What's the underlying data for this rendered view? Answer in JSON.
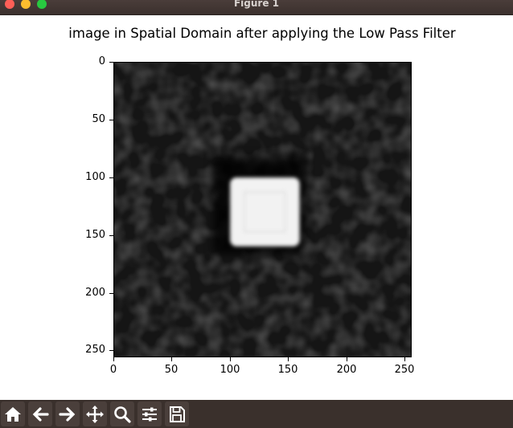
{
  "window": {
    "title": "Figure 1"
  },
  "plot": {
    "title": "image in Spatial Domain after applying the Low Pass Filter",
    "y_ticks": [
      "0",
      "50",
      "100",
      "150",
      "200",
      "250"
    ],
    "x_ticks": [
      "0",
      "50",
      "100",
      "150",
      "200",
      "250"
    ],
    "image_extent": [
      0,
      256
    ],
    "bright_square": {
      "x_from": 100,
      "x_to": 160,
      "y_from": 100,
      "y_to": 160
    },
    "colormap": "gray"
  },
  "toolbar": {
    "buttons": [
      "home-icon",
      "back-arrow-icon",
      "forward-arrow-icon",
      "pan-icon",
      "zoom-icon",
      "configure-subplots-icon",
      "save-icon"
    ]
  }
}
